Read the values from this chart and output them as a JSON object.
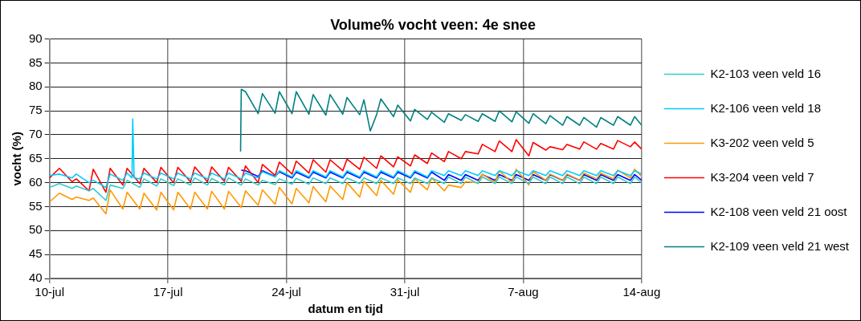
{
  "chart_data": {
    "type": "line",
    "title": "Volume% vocht veen: 4e snee",
    "xlabel": "datum en tijd",
    "ylabel": "vocht (%)",
    "x": [
      "--07-10T00:00",
      "--07-10T14:00",
      "--07-11T08:00",
      "--07-11T14:00",
      "--07-12T08:00",
      "--07-12T14:00",
      "--07-13T08:00",
      "--07-13T14:00",
      "--07-14T08:00",
      "--07-14T14:00",
      "--07-15T08:00",
      "--07-15T14:00",
      "--07-16T08:00",
      "--07-16T14:00",
      "--07-17T08:00",
      "--07-17T14:00",
      "--07-18T08:00",
      "--07-18T14:00",
      "--07-19T08:00",
      "--07-19T14:00",
      "--07-20T08:00",
      "--07-20T14:00",
      "--07-21T08:00",
      "--07-21T14:00",
      "--07-22T08:00",
      "--07-22T14:00",
      "--07-23T08:00",
      "--07-23T14:00",
      "--07-24T08:00",
      "--07-24T14:00",
      "--07-25T08:00",
      "--07-25T14:00",
      "--07-26T08:00",
      "--07-26T14:00",
      "--07-27T08:00",
      "--07-27T14:00",
      "--07-28T08:00",
      "--07-28T14:00",
      "--07-29T08:00",
      "--07-29T14:00",
      "--07-30T08:00",
      "--07-30T14:00",
      "--07-31T08:00",
      "--07-31T14:00",
      "--08-01T08:00",
      "--08-01T14:00",
      "--08-02T08:00",
      "--08-02T14:00",
      "--08-03T08:00",
      "--08-03T14:00",
      "--08-04T08:00",
      "--08-04T14:00",
      "--08-05T08:00",
      "--08-05T14:00",
      "--08-06T08:00",
      "--08-06T14:00",
      "--08-07T08:00",
      "--08-07T14:00",
      "--08-08T08:00",
      "--08-08T14:00",
      "--08-09T08:00",
      "--08-09T14:00",
      "--08-10T08:00",
      "--08-10T14:00",
      "--08-11T08:00",
      "--08-11T14:00",
      "--08-12T08:00",
      "--08-12T14:00",
      "--08-13T08:00",
      "--08-13T14:00",
      "--08-14T00:00"
    ],
    "xlim": [
      "--07-10",
      "--08-14"
    ],
    "xticks": [
      {
        "value": "--07-10",
        "label": "10-jul"
      },
      {
        "value": "--07-17",
        "label": "17-jul"
      },
      {
        "value": "--07-24",
        "label": "24-jul"
      },
      {
        "value": "--07-31",
        "label": "31-jul"
      },
      {
        "value": "--08-07",
        "label": "7-aug"
      },
      {
        "value": "--08-14",
        "label": "14-aug"
      }
    ],
    "ylim": [
      40,
      90
    ],
    "yticks": [
      40,
      45,
      50,
      55,
      60,
      65,
      70,
      75,
      80,
      85,
      90
    ],
    "grid": true,
    "legend": "right",
    "series": [
      {
        "name": "K2-103 veen veld 16",
        "color": "#33cccc",
        "values": [
          59,
          59.8,
          58.8,
          59.3,
          58.3,
          58.8,
          56.3,
          59.5,
          58.8,
          60.5,
          59,
          60.8,
          59.3,
          60.8,
          59.4,
          60.8,
          59.5,
          61,
          59.5,
          60.9,
          59.5,
          61,
          59.5,
          60.8,
          59.5,
          60.5,
          59.6,
          60.8,
          59.7,
          60.9,
          59.7,
          61,
          59.8,
          61,
          59.8,
          61,
          59.8,
          61,
          59.8,
          61,
          59.8,
          61,
          59.8,
          61,
          59.8,
          61,
          59.8,
          61.2,
          59.8,
          61.2,
          59.8,
          61.2,
          59.8,
          61.2,
          59.8,
          61.2,
          59.8,
          61.2,
          59.8,
          61.2,
          59.8,
          61.2,
          59.8,
          61.2,
          59.8,
          61.2,
          59.8,
          61.2,
          59.8,
          61.2,
          60
        ]
      },
      {
        "name": "K2-106 veen veld 18",
        "color": "#00ccff",
        "x": [
          "--07-10T00:00",
          "--07-10T14:00",
          "--07-11T08:00",
          "--07-11T14:00",
          "--07-12T08:00",
          "--07-12T14:00",
          "--07-13T08:00",
          "--07-13T14:00",
          "--07-14T08:00",
          "--07-14T14:00",
          "--07-14T21:00",
          "--07-14T22:00",
          "--07-15T00:00",
          "--07-15T08:00",
          "--07-15T14:00",
          "--07-16T08:00",
          "--07-16T14:00",
          "--07-17T08:00",
          "--07-17T14:00",
          "--07-18T08:00",
          "--07-18T14:00",
          "--07-19T08:00",
          "--07-19T14:00",
          "--07-20T08:00",
          "--07-20T14:00",
          "--07-21T08:00",
          "--07-21T14:00",
          "--07-22T08:00",
          "--07-22T14:00",
          "--07-23T08:00",
          "--07-23T14:00",
          "--07-24T08:00",
          "--07-24T14:00",
          "--07-25T08:00",
          "--07-25T14:00",
          "--07-26T08:00",
          "--07-26T14:00",
          "--07-27T08:00",
          "--07-27T14:00",
          "--07-28T08:00",
          "--07-28T14:00",
          "--07-29T08:00",
          "--07-29T14:00",
          "--07-30T08:00",
          "--07-30T14:00",
          "--07-31T08:00",
          "--07-31T14:00",
          "--08-01T08:00",
          "--08-01T14:00",
          "--08-02T08:00",
          "--08-02T14:00",
          "--08-03T08:00",
          "--08-03T14:00",
          "--08-04T08:00",
          "--08-04T14:00",
          "--08-05T08:00",
          "--08-05T14:00",
          "--08-06T08:00",
          "--08-06T14:00",
          "--08-07T08:00",
          "--08-07T14:00",
          "--08-08T08:00",
          "--08-08T14:00",
          "--08-09T08:00",
          "--08-09T14:00",
          "--08-10T08:00",
          "--08-10T14:00",
          "--08-11T08:00",
          "--08-11T14:00",
          "--08-12T08:00",
          "--08-12T14:00",
          "--08-13T08:00",
          "--08-13T14:00",
          "--08-14T00:00"
        ],
        "values": [
          61.5,
          61.8,
          61,
          61.8,
          60,
          60.5,
          59,
          61.8,
          60.5,
          62,
          61,
          73.3,
          61,
          60.8,
          62,
          60.8,
          62,
          60.8,
          62,
          60.8,
          62,
          60.8,
          62,
          60.8,
          62,
          60.8,
          62,
          61,
          62.3,
          61.2,
          62.5,
          61.2,
          62.5,
          61.2,
          62.5,
          61.2,
          62.5,
          61.2,
          62.5,
          61.2,
          62.5,
          61.2,
          62.5,
          61.2,
          62.5,
          61.2,
          62.5,
          61.2,
          62.5,
          61.5,
          62.5,
          61.5,
          62.5,
          61.5,
          62.5,
          61.5,
          62.5,
          61.5,
          62.5,
          61.5,
          62.5,
          61.5,
          62.5,
          61.5,
          62.5,
          61.5,
          62.5,
          61.5,
          62.5,
          61.5,
          62.5,
          61.5,
          62.5,
          61.8
        ]
      },
      {
        "name": "K3-202 veen veld 5",
        "color": "#ff9900",
        "values": [
          56,
          57.8,
          56.5,
          57,
          56.3,
          56.8,
          53.5,
          58.5,
          54.5,
          58,
          54.5,
          57.8,
          54.3,
          58,
          54.3,
          58,
          54.5,
          58,
          54.5,
          58.2,
          54.5,
          58.2,
          54.8,
          58.3,
          55.3,
          58.5,
          55.5,
          59,
          55.6,
          58.8,
          55.8,
          59.2,
          56,
          59.3,
          56.5,
          60,
          57,
          60.3,
          57.3,
          60.5,
          57.6,
          60.6,
          58,
          60.8,
          58.5,
          61,
          58.3,
          59.5,
          59,
          60.2,
          60,
          61.8,
          60,
          62.5,
          60,
          62.8,
          59.5,
          62.3,
          60.5,
          61.8,
          60.5,
          61.8,
          60.5,
          62,
          60.8,
          62,
          60.8,
          62.6,
          61,
          62.8,
          61.3
        ]
      },
      {
        "name": "K3-204 veen veld 7",
        "color": "#ff0000",
        "values": [
          61,
          63,
          60.2,
          60.8,
          58.3,
          62.8,
          58,
          63,
          59.5,
          63,
          59.8,
          63,
          60,
          63.2,
          60,
          63.2,
          60.2,
          63.3,
          60.2,
          63.3,
          60.3,
          63.2,
          60.3,
          63.5,
          60,
          63.8,
          61.5,
          64.3,
          61.8,
          64.5,
          62,
          64.8,
          62.2,
          64.8,
          62.5,
          64.9,
          62.8,
          65.3,
          63,
          65.6,
          63.3,
          65.4,
          63.5,
          65.8,
          64,
          66.2,
          64.4,
          66.5,
          65,
          66.5,
          66,
          68,
          66.5,
          68.7,
          66.5,
          69,
          65.6,
          68.4,
          66.8,
          67.5,
          66.9,
          68,
          67,
          68.5,
          67,
          68.2,
          67,
          68.8,
          67.5,
          68.5,
          67
        ]
      },
      {
        "name": "K2-108 veen veld 21 oost",
        "color": "#0000ff",
        "values": [
          null,
          null,
          null,
          null,
          null,
          null,
          null,
          null,
          null,
          null,
          null,
          null,
          null,
          null,
          null,
          null,
          null,
          null,
          null,
          null,
          null,
          null,
          62.6,
          62.5,
          61.3,
          62.5,
          61.3,
          62.3,
          61,
          62.2,
          61,
          62.2,
          61,
          62.2,
          61,
          62.2,
          61,
          62.2,
          61,
          62.2,
          61,
          62.2,
          61,
          62.2,
          61,
          62.2,
          60.5,
          61.7,
          60.5,
          61.7,
          60.5,
          61.7,
          60.5,
          61.7,
          60.5,
          61.7,
          60.5,
          61.7,
          60.5,
          61.7,
          60.5,
          61.7,
          60.5,
          61.7,
          60.5,
          61.7,
          60.5,
          61.7,
          60.5,
          61.7,
          60.5
        ]
      },
      {
        "name": "K2-109 veen veld 21 west",
        "color": "#008080",
        "x": [
          "--07-21T07:00",
          "--07-21T08:00",
          "--07-21T14:00",
          "--07-22T08:00",
          "--07-22T14:00",
          "--07-23T08:00",
          "--07-23T14:00",
          "--07-24T08:00",
          "--07-24T14:00",
          "--07-25T08:00",
          "--07-25T14:00",
          "--07-26T08:00",
          "--07-26T14:00",
          "--07-27T08:00",
          "--07-27T14:00",
          "--07-28T08:00",
          "--07-28T14:00",
          "--07-28T23:00",
          "--07-29T08:00",
          "--07-29T14:00",
          "--07-30T08:00",
          "--07-30T14:00",
          "--07-31T08:00",
          "--07-31T14:00",
          "--08-01T08:00",
          "--08-01T14:00",
          "--08-02T08:00",
          "--08-02T14:00",
          "--08-03T08:00",
          "--08-03T14:00",
          "--08-04T08:00",
          "--08-04T14:00",
          "--08-05T08:00",
          "--08-05T14:00",
          "--08-06T08:00",
          "--08-06T14:00",
          "--08-07T08:00",
          "--08-07T14:00",
          "--08-08T08:00",
          "--08-08T14:00",
          "--08-09T08:00",
          "--08-09T14:00",
          "--08-10T08:00",
          "--08-10T14:00",
          "--08-11T08:00",
          "--08-11T14:00",
          "--08-12T08:00",
          "--08-12T14:00",
          "--08-13T08:00",
          "--08-13T14:00",
          "--08-14T00:00"
        ],
        "values": [
          66.5,
          79.5,
          79,
          74.4,
          78.6,
          74.5,
          79,
          74.4,
          79,
          74.3,
          78.4,
          74.1,
          78.4,
          74.3,
          77.8,
          74.2,
          77.3,
          70.8,
          74.2,
          77.5,
          73.8,
          76.2,
          72.9,
          75.3,
          73.2,
          74.7,
          72.6,
          74.4,
          73,
          74.2,
          72.8,
          74.4,
          72.8,
          75,
          72.7,
          74.8,
          72.4,
          74.4,
          72.3,
          74,
          72,
          73.8,
          72,
          73.6,
          71.6,
          73.6,
          72,
          73.8,
          72,
          73.8,
          72
        ]
      }
    ]
  }
}
